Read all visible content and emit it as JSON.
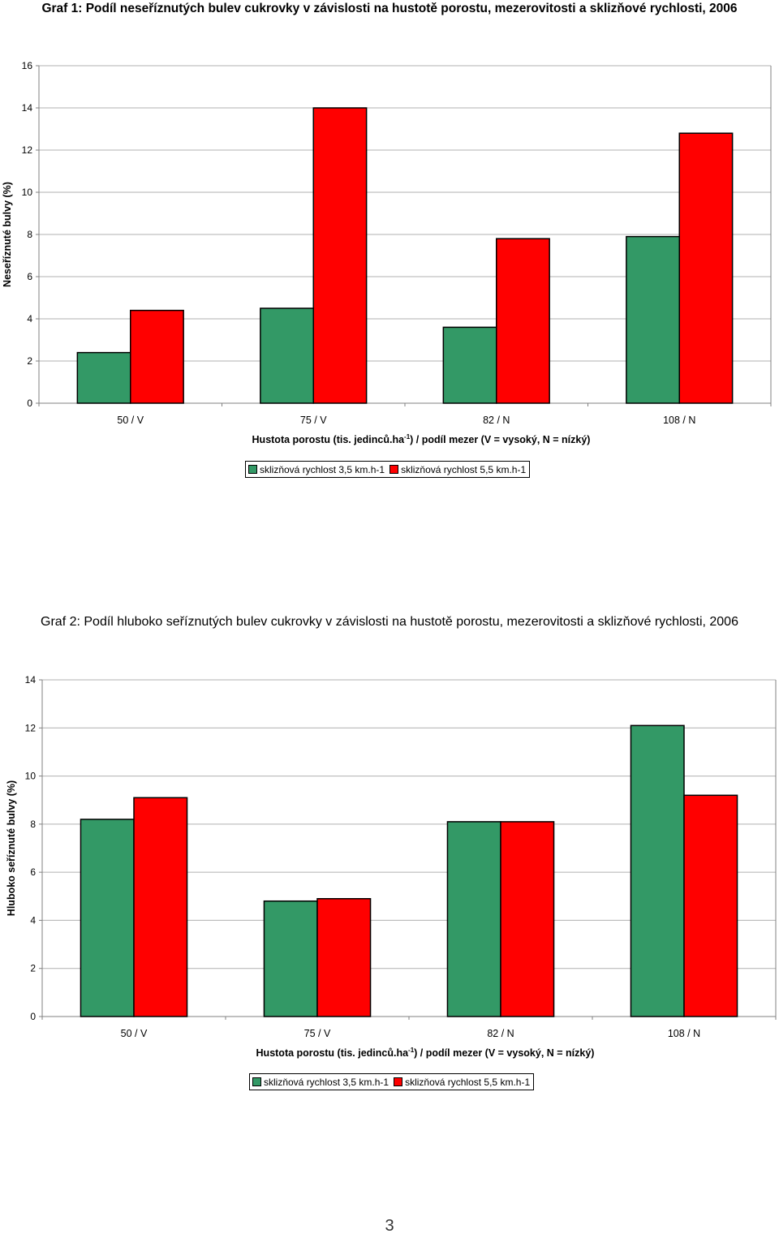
{
  "page": {
    "number": "3"
  },
  "colors": {
    "series1": "#339966",
    "series2": "#ff0000",
    "grid": "#c0c0c0",
    "axis": "#808080"
  },
  "chart_data": [
    {
      "type": "bar",
      "title": "Graf 1: Podíl neseříznutých bulev cukrovky v závislosti na hustotě porostu, mezerovitosti a sklizňové rychlosti, 2006",
      "xlabel_main": "Hustota porostu (tis. jedinců.ha",
      "xlabel_sup": "-1",
      "xlabel_rest": ") / podíl mezer (V = vysoký, N = nízký)",
      "ylabel": "Neseříznuté bulvy (%)",
      "categories": [
        "50 / V",
        "75 / V",
        "82 / N",
        "108 / N"
      ],
      "ylim": [
        0,
        16
      ],
      "yticks": [
        0,
        2,
        4,
        6,
        8,
        10,
        12,
        14,
        16
      ],
      "grid": true,
      "legend_position": "bottom",
      "series": [
        {
          "name": "sklizňová rychlost 3,5 km.h-1",
          "values": [
            2.4,
            4.5,
            3.6,
            7.9
          ]
        },
        {
          "name": "sklizňová rychlost 5,5 km.h-1",
          "values": [
            4.4,
            14.0,
            7.8,
            12.8
          ]
        }
      ]
    },
    {
      "type": "bar",
      "title": "Graf 2: Podíl hluboko seříznutých bulev cukrovky v závislosti na hustotě porostu, mezerovitosti a sklizňové rychlosti, 2006",
      "xlabel_main": "Hustota porostu (tis. jedinců.ha",
      "xlabel_sup": "-1",
      "xlabel_rest": ") / podíl mezer (V = vysoký, N = nízký)",
      "ylabel": "Hluboko seříznuté bulvy (%)",
      "categories": [
        "50 / V",
        "75 / V",
        "82 / N",
        "108 / N"
      ],
      "ylim": [
        0,
        14
      ],
      "yticks": [
        0,
        2,
        4,
        6,
        8,
        10,
        12,
        14
      ],
      "grid": true,
      "legend_position": "bottom",
      "series": [
        {
          "name": "sklizňová rychlost 3,5 km.h-1",
          "values": [
            8.2,
            4.8,
            8.1,
            12.1
          ]
        },
        {
          "name": "sklizňová rychlost 5,5 km.h-1",
          "values": [
            9.1,
            4.9,
            8.1,
            9.2
          ]
        }
      ]
    }
  ]
}
